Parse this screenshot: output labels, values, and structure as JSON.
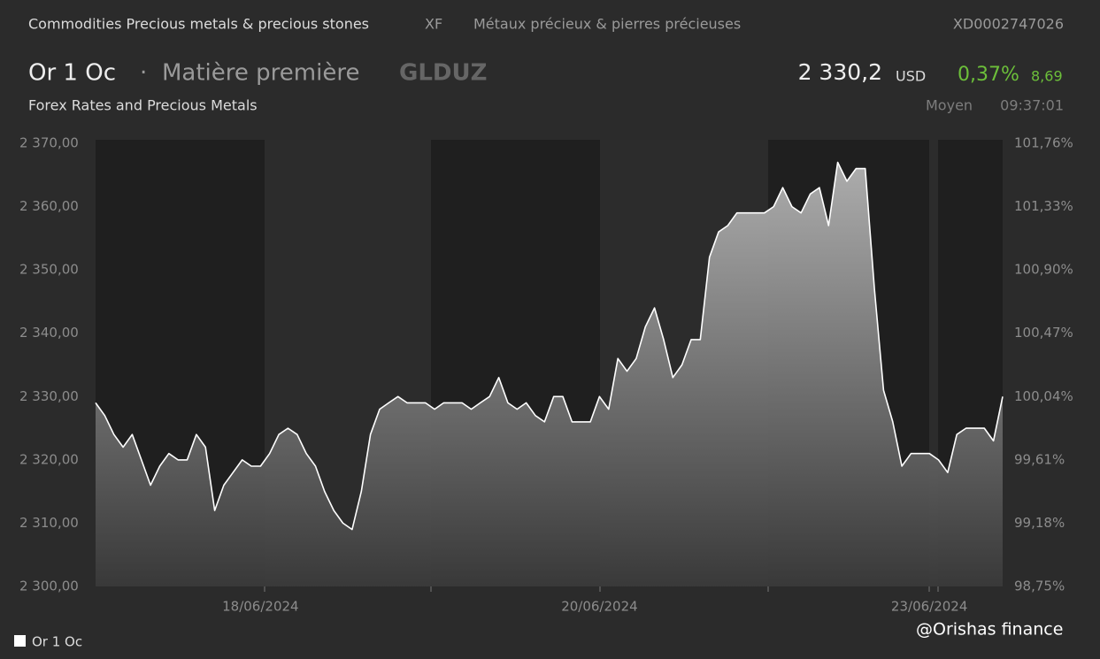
{
  "header": {
    "category": "Commodities Precious metals & precious stones",
    "exchange": "XF",
    "category_fr": "Métaux précieux & pierres précieuses",
    "isin": "XD0002747026",
    "name": "Or 1 Oc",
    "separator": "·",
    "asset_type": "Matière première",
    "ticker": "GLDUZ",
    "price": "2 330,2",
    "currency": "USD",
    "change_pct": "0,37%",
    "change_abs": "8,69",
    "source": "Forex Rates and Precious Metals",
    "price_type": "Moyen",
    "time": "09:37:01"
  },
  "chart_data": {
    "type": "area",
    "categories": [
      null,
      null,
      null,
      null,
      null,
      null,
      null,
      null,
      null,
      null,
      null,
      null,
      null,
      null,
      null,
      null,
      null,
      null,
      "18/06/2024",
      null,
      null,
      null,
      null,
      null,
      null,
      null,
      null,
      null,
      null,
      null,
      null,
      null,
      null,
      null,
      null,
      null,
      null,
      null,
      null,
      null,
      null,
      null,
      null,
      null,
      null,
      null,
      null,
      null,
      null,
      null,
      null,
      null,
      null,
      null,
      null,
      "20/06/2024",
      null,
      null,
      null,
      null,
      null,
      null,
      null,
      null,
      null,
      null,
      null,
      null,
      null,
      null,
      null,
      null,
      null,
      null,
      null,
      null,
      null,
      null,
      null,
      null,
      null,
      null,
      null,
      null,
      null,
      null,
      null,
      null,
      null,
      null,
      null,
      "23/06/2024",
      null,
      null,
      null,
      null,
      null,
      null,
      null,
      null
    ],
    "series": [
      {
        "name": "Or 1 Oc",
        "color": "#ffffff",
        "values": [
          2329,
          2327,
          2324,
          2322,
          2324,
          2320,
          2316,
          2319,
          2321,
          2320,
          2320,
          2324,
          2322,
          2312,
          2316,
          2318,
          2320,
          2319,
          2319,
          2321,
          2324,
          2325,
          2324,
          2321,
          2319,
          2315,
          2312,
          2310,
          2309,
          2315,
          2324,
          2328,
          2329,
          2330,
          2329,
          2329,
          2329,
          2328,
          2329,
          2329,
          2329,
          2328,
          2329,
          2330,
          2333,
          2329,
          2328,
          2329,
          2327,
          2326,
          2330,
          2330,
          2326,
          2326,
          2326,
          2330,
          2328,
          2336,
          2334,
          2336,
          2341,
          2344,
          2339,
          2333,
          2335,
          2339,
          2339,
          2352,
          2356,
          2357,
          2359,
          2359,
          2359,
          2359,
          2360,
          2363,
          2360,
          2359,
          2362,
          2363,
          2357,
          2367,
          2364,
          2366,
          2366,
          2347,
          2331,
          2326,
          2319,
          2321,
          2321,
          2321,
          2320,
          2318,
          2324,
          2325,
          2325,
          2325,
          2323,
          2330
        ]
      }
    ],
    "ylim": [
      2300,
      2370
    ],
    "yticks": [
      {
        "value": 2300,
        "label": "2 300,00"
      },
      {
        "value": 2310,
        "label": "2 310,00"
      },
      {
        "value": 2320,
        "label": "2 320,00"
      },
      {
        "value": 2330,
        "label": "2 330,00"
      },
      {
        "value": 2340,
        "label": "2 340,00"
      },
      {
        "value": 2350,
        "label": "2 350,00"
      },
      {
        "value": 2360,
        "label": "2 360,00"
      },
      {
        "value": 2370,
        "label": "2 370,00"
      }
    ],
    "y2lim": [
      98.75,
      101.76
    ],
    "y2ticks": [
      {
        "value": 98.75,
        "label": "98,75%"
      },
      {
        "value": 99.18,
        "label": "99,18%"
      },
      {
        "value": 99.61,
        "label": "99,61%"
      },
      {
        "value": 100.04,
        "label": "100,04%"
      },
      {
        "value": 100.47,
        "label": "100,47%"
      },
      {
        "value": 100.9,
        "label": "100,90%"
      },
      {
        "value": 101.33,
        "label": "101,33%"
      },
      {
        "value": 101.76,
        "label": "101,76%"
      }
    ]
  },
  "watermark": "@Orishas finance"
}
